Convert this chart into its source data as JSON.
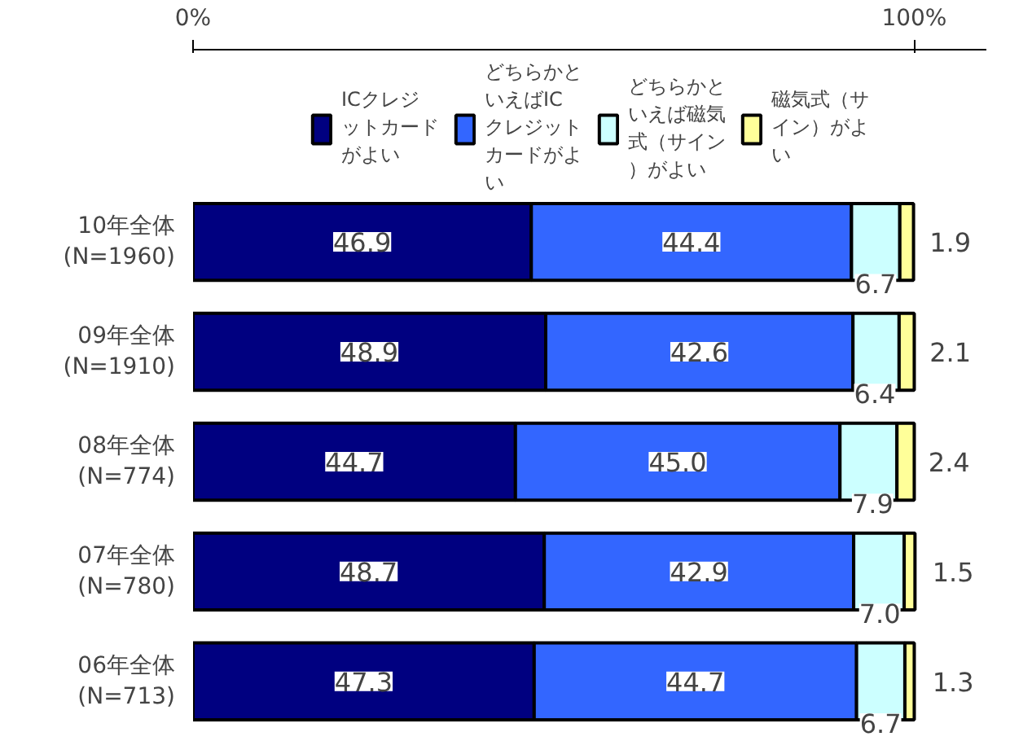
{
  "chart_data": {
    "type": "bar",
    "orientation": "horizontal",
    "stacked": true,
    "categories": [
      "10年全体\n(N=1960)",
      "09年全体\n(N=1910)",
      "08年全体\n(N=774)",
      "07年全体\n(N=780)",
      "06年全体\n(N=713)"
    ],
    "series": [
      {
        "name": "ICクレジットカードがよい",
        "color": "#000080",
        "values": [
          46.9,
          48.9,
          44.7,
          48.7,
          47.3
        ],
        "value_labels": [
          "46.9",
          "48.9",
          "44.7",
          "48.7",
          "47.3"
        ]
      },
      {
        "name": "どちらかといえばICクレジットカードがよい",
        "color": "#3366ff",
        "values": [
          44.4,
          42.6,
          45.0,
          42.9,
          44.7
        ],
        "value_labels": [
          "44.4",
          "42.6",
          "45.0",
          "42.9",
          "44.7"
        ]
      },
      {
        "name": "どちらかといえば磁気式（サイン）がよい",
        "color": "#ccffff",
        "values": [
          6.7,
          6.4,
          7.9,
          7.0,
          6.7
        ],
        "value_labels": [
          "6.7",
          "6.4",
          "7.9",
          "7.0",
          "6.7"
        ]
      },
      {
        "name": "磁気式（サイン）がよい",
        "color": "#ffff99",
        "values": [
          1.9,
          2.1,
          2.4,
          1.5,
          1.3
        ],
        "value_labels": [
          "1.9",
          "2.1",
          "2.4",
          "1.5",
          "1.3"
        ]
      }
    ],
    "xlim": [
      0,
      110
    ],
    "xticks": [
      {
        "value": 0,
        "label": "0%"
      },
      {
        "value": 100,
        "label": "100%"
      }
    ],
    "legend": "top"
  }
}
